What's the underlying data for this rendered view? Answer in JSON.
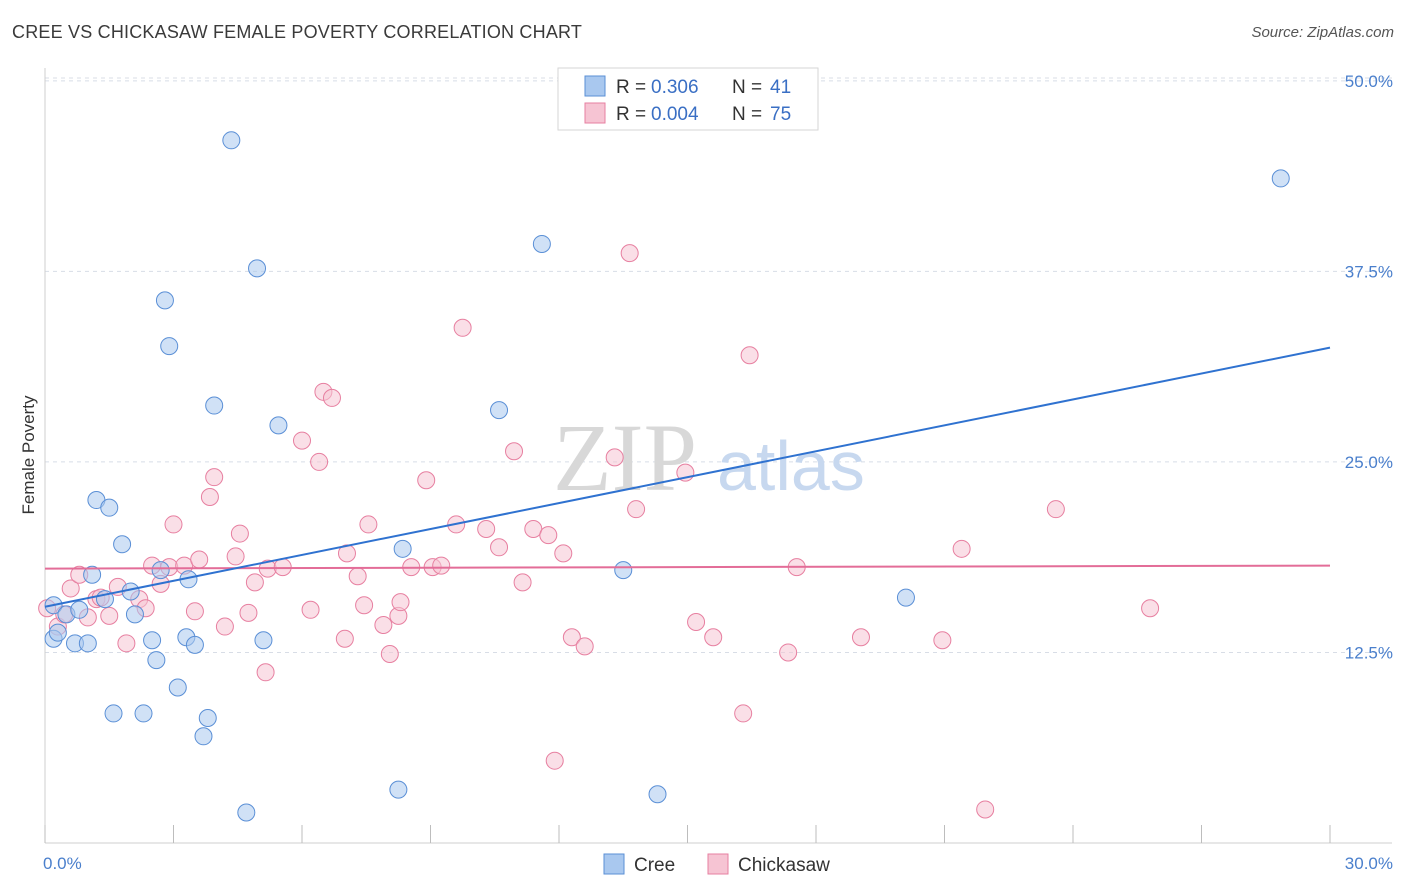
{
  "title": "CREE VS CHICKASAW FEMALE POVERTY CORRELATION CHART",
  "source": "Source: ZipAtlas.com",
  "watermark": {
    "part1": "ZIP",
    "part2": "atlas"
  },
  "legend_top": {
    "rows": [
      {
        "r_label": "R = ",
        "r_value": "0.306",
        "n_label": "N = ",
        "n_value": "41"
      },
      {
        "r_label": "R = ",
        "r_value": "0.004",
        "n_label": "N = ",
        "n_value": "75"
      }
    ]
  },
  "colors": {
    "cree_fill": "#a9c8ef",
    "cree_stroke": "#5a8fd6",
    "cree_line": "#2f72d0",
    "chick_fill": "#f6c4d3",
    "chick_stroke": "#e77fa0",
    "chick_line": "#e36d98",
    "grid": "#d8dde6",
    "axis_text": "#4a7fcc"
  },
  "chart_data": {
    "type": "scatter",
    "title": "CREE VS CHICKASAW FEMALE POVERTY CORRELATION CHART",
    "xlabel": "",
    "ylabel": "Female Poverty",
    "xlim": [
      0,
      30
    ],
    "ylim": [
      0,
      51.5
    ],
    "x_ticks": [
      "0.0%",
      "30.0%"
    ],
    "y_ticks": [
      {
        "value": 12.5,
        "label": "12.5%"
      },
      {
        "value": 25.0,
        "label": "25.0%"
      },
      {
        "value": 37.5,
        "label": "37.5%"
      },
      {
        "value": 50.0,
        "label": "50.0%"
      }
    ],
    "grid": "horizontal dashed",
    "legend_bottom": [
      "Cree",
      "Chickasaw"
    ],
    "series": [
      {
        "name": "Cree",
        "trend": {
          "x": [
            0,
            30
          ],
          "y": [
            15.5,
            32.5
          ]
        },
        "points": [
          [
            0.2,
            15.6
          ],
          [
            0.2,
            13.4
          ],
          [
            0.3,
            13.8
          ],
          [
            0.5,
            15.0
          ],
          [
            0.7,
            13.1
          ],
          [
            0.8,
            15.3
          ],
          [
            1.0,
            13.1
          ],
          [
            1.1,
            17.6
          ],
          [
            1.2,
            22.5
          ],
          [
            1.4,
            16.0
          ],
          [
            1.5,
            22.0
          ],
          [
            1.6,
            8.5
          ],
          [
            1.8,
            19.6
          ],
          [
            2.0,
            16.5
          ],
          [
            2.1,
            15.0
          ],
          [
            2.3,
            8.5
          ],
          [
            2.5,
            13.3
          ],
          [
            2.6,
            12.0
          ],
          [
            2.7,
            17.9
          ],
          [
            2.8,
            35.6
          ],
          [
            2.9,
            32.6
          ],
          [
            3.1,
            10.2
          ],
          [
            3.3,
            13.5
          ],
          [
            3.35,
            17.3
          ],
          [
            3.5,
            13.0
          ],
          [
            3.7,
            7.0
          ],
          [
            3.8,
            8.2
          ],
          [
            3.95,
            28.7
          ],
          [
            4.35,
            46.1
          ],
          [
            4.7,
            2.0
          ],
          [
            4.95,
            37.7
          ],
          [
            5.1,
            13.3
          ],
          [
            5.45,
            27.4
          ],
          [
            8.25,
            3.5
          ],
          [
            8.35,
            19.3
          ],
          [
            10.6,
            28.4
          ],
          [
            11.6,
            39.3
          ],
          [
            13.5,
            17.9
          ],
          [
            14.3,
            3.2
          ],
          [
            20.1,
            16.1
          ],
          [
            28.85,
            43.6
          ]
        ]
      },
      {
        "name": "Chickasaw",
        "trend": {
          "x": [
            0,
            30
          ],
          "y": [
            18.0,
            18.2
          ]
        },
        "points": [
          [
            0.05,
            15.4
          ],
          [
            0.3,
            14.2
          ],
          [
            0.45,
            15.0
          ],
          [
            0.6,
            16.7
          ],
          [
            0.8,
            17.6
          ],
          [
            1.0,
            14.8
          ],
          [
            1.2,
            16.0
          ],
          [
            1.3,
            16.1
          ],
          [
            1.5,
            14.9
          ],
          [
            1.7,
            16.8
          ],
          [
            1.9,
            13.1
          ],
          [
            2.2,
            16.0
          ],
          [
            2.35,
            15.4
          ],
          [
            2.5,
            18.2
          ],
          [
            2.7,
            17.0
          ],
          [
            2.9,
            18.1
          ],
          [
            3.0,
            20.9
          ],
          [
            3.25,
            18.2
          ],
          [
            3.5,
            15.2
          ],
          [
            3.6,
            18.6
          ],
          [
            3.85,
            22.7
          ],
          [
            3.95,
            24.0
          ],
          [
            4.2,
            14.2
          ],
          [
            4.45,
            18.8
          ],
          [
            4.55,
            20.3
          ],
          [
            4.75,
            15.1
          ],
          [
            4.9,
            17.1
          ],
          [
            5.15,
            11.2
          ],
          [
            5.2,
            18.0
          ],
          [
            5.55,
            18.1
          ],
          [
            6.0,
            26.4
          ],
          [
            6.2,
            15.3
          ],
          [
            6.4,
            25.0
          ],
          [
            6.5,
            29.6
          ],
          [
            6.7,
            29.2
          ],
          [
            7.0,
            13.4
          ],
          [
            7.05,
            19.0
          ],
          [
            7.3,
            17.5
          ],
          [
            7.45,
            15.6
          ],
          [
            7.55,
            20.9
          ],
          [
            7.9,
            14.3
          ],
          [
            8.05,
            12.4
          ],
          [
            8.25,
            14.9
          ],
          [
            8.3,
            15.8
          ],
          [
            8.55,
            18.1
          ],
          [
            8.9,
            23.8
          ],
          [
            9.05,
            18.1
          ],
          [
            9.25,
            18.2
          ],
          [
            9.6,
            20.9
          ],
          [
            9.75,
            33.8
          ],
          [
            10.3,
            20.6
          ],
          [
            10.6,
            19.4
          ],
          [
            10.95,
            25.7
          ],
          [
            11.15,
            17.1
          ],
          [
            11.4,
            20.6
          ],
          [
            11.75,
            20.2
          ],
          [
            11.9,
            5.4
          ],
          [
            12.1,
            19.0
          ],
          [
            12.3,
            13.5
          ],
          [
            12.6,
            12.9
          ],
          [
            13.3,
            25.3
          ],
          [
            13.65,
            38.7
          ],
          [
            13.8,
            21.9
          ],
          [
            14.95,
            24.3
          ],
          [
            15.2,
            14.5
          ],
          [
            15.6,
            13.5
          ],
          [
            16.3,
            8.5
          ],
          [
            16.45,
            32.0
          ],
          [
            17.35,
            12.5
          ],
          [
            17.55,
            18.1
          ],
          [
            19.05,
            13.5
          ],
          [
            20.95,
            13.3
          ],
          [
            21.4,
            19.3
          ],
          [
            21.95,
            2.2
          ],
          [
            23.6,
            21.9
          ],
          [
            25.8,
            15.4
          ]
        ]
      }
    ]
  }
}
